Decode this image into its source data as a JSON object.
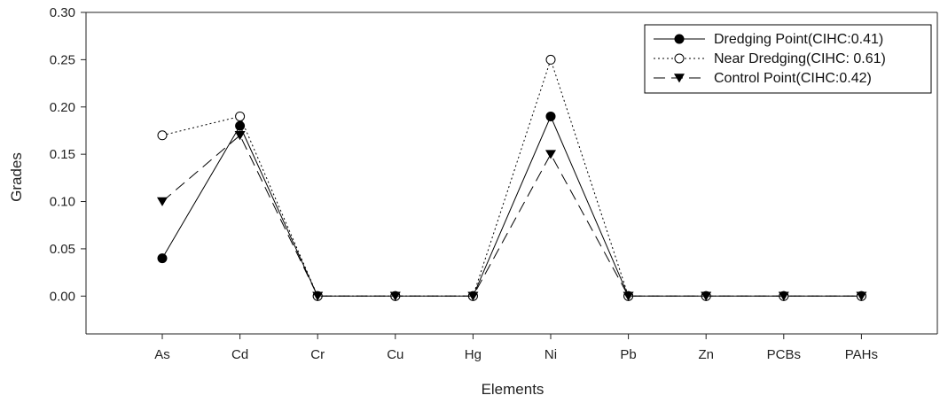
{
  "chart_data": {
    "type": "line",
    "xlabel": "Elements",
    "ylabel": "Grades",
    "ylim": [
      -0.04,
      0.3
    ],
    "yticks": [
      "0.00",
      "0.05",
      "0.10",
      "0.15",
      "0.20",
      "0.25",
      "0.30"
    ],
    "categories": [
      "As",
      "Cd",
      "Cr",
      "Cu",
      "Hg",
      "Ni",
      "Pb",
      "Zn",
      "PCBs",
      "PAHs"
    ],
    "legend_position": "top-right",
    "series": [
      {
        "name": "Dredging Point(CIHC:0.41)",
        "marker": "filled-circle",
        "line_style": "solid",
        "values": [
          0.04,
          0.18,
          0,
          0,
          0,
          0.19,
          0,
          0,
          0,
          0
        ]
      },
      {
        "name": "Near Dredging(CIHC: 0.61)",
        "marker": "open-circle",
        "line_style": "dotted",
        "values": [
          0.17,
          0.19,
          0,
          0,
          0,
          0.25,
          0,
          0,
          0,
          0
        ]
      },
      {
        "name": "Control Point(CIHC:0.42)",
        "marker": "filled-triangle-down",
        "line_style": "dashed",
        "values": [
          0.1,
          0.17,
          0,
          0,
          0,
          0.15,
          0,
          0,
          0,
          0
        ]
      }
    ]
  }
}
